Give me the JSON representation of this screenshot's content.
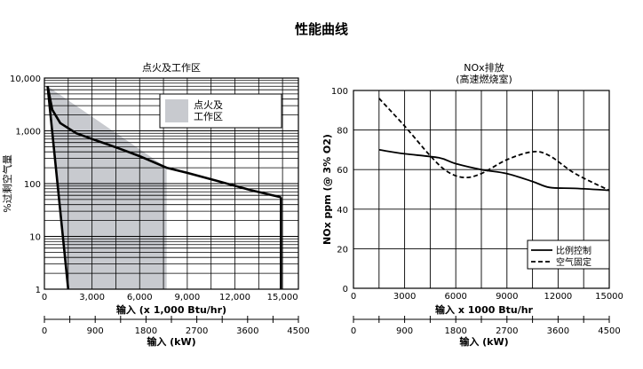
{
  "page_title": "性能曲线",
  "chart_data": [
    {
      "type": "area",
      "title": "点火及工作区",
      "xlabel": "输入 (x 1,000 Btu/hr)",
      "ylabel": "%过剩空气量",
      "yscale": "log",
      "xlim": [
        0,
        16000
      ],
      "ylim": [
        1,
        10000
      ],
      "x_ticks": [
        "0",
        "3,000",
        "6,000",
        "9,000",
        "12,000",
        "15,000"
      ],
      "y_ticks": [
        "1",
        "10",
        "100",
        "1,000",
        "10,000"
      ],
      "secondary_axis": {
        "label": "输入 (kW)",
        "ticks": [
          "0",
          "900",
          "1800",
          "2700",
          "3600",
          "4500"
        ]
      },
      "legend": {
        "label": "点火及\n工作区",
        "placement": "top-right"
      },
      "shaded_region": {
        "name": "点火及工作区",
        "x": [
          200,
          7700,
          7700,
          1500
        ],
        "y": [
          7000,
          200,
          1,
          1
        ],
        "color": "#c8cacf"
      },
      "series": [
        {
          "name": "upper boundary",
          "x": [
            200,
            500,
            1000,
            2000,
            3000,
            4000,
            5000,
            6000,
            7700,
            9000,
            11000,
            13000,
            14900
          ],
          "y": [
            7000,
            2500,
            1400,
            900,
            700,
            550,
            430,
            330,
            200,
            160,
            110,
            75,
            55
          ]
        },
        {
          "name": "lower boundary",
          "x": [
            200,
            1500
          ],
          "y": [
            7000,
            1
          ]
        },
        {
          "name": "right boundary",
          "x": [
            14900,
            14900
          ],
          "y": [
            55,
            1
          ]
        }
      ],
      "grid": true
    },
    {
      "type": "line",
      "title": "NOx排放",
      "subtitle": "(高速燃烧室)",
      "xlabel": "输入 x 1000 Btu/hr",
      "ylabel": "NOx ppm (@ 3% O2)",
      "xlim": [
        0,
        15000
      ],
      "ylim": [
        0,
        100
      ],
      "x_ticks": [
        "0",
        "3000",
        "6000",
        "9000",
        "12000",
        "15000"
      ],
      "y_ticks": [
        "0",
        "20",
        "40",
        "60",
        "80",
        "100"
      ],
      "secondary_axis": {
        "label": "输入 (kW)",
        "ticks": [
          "0",
          "900",
          "1800",
          "2700",
          "3600",
          "4500"
        ]
      },
      "legend_placement": "bottom-right",
      "series": [
        {
          "name": "比例控制",
          "style": "solid",
          "x": [
            1500,
            3000,
            5000,
            6000,
            7500,
            9000,
            10500,
            11500,
            13000,
            15000
          ],
          "y": [
            70,
            68,
            66,
            63,
            60,
            58,
            54,
            51,
            50.5,
            49.5
          ]
        },
        {
          "name": "空气固定",
          "style": "dashed",
          "x": [
            1500,
            3000,
            4500,
            5500,
            6500,
            7500,
            9000,
            10500,
            11500,
            13000,
            15000
          ],
          "y": [
            96,
            82,
            67,
            59,
            56,
            58,
            65,
            69,
            67,
            58,
            49.5
          ]
        }
      ],
      "grid": true
    }
  ]
}
